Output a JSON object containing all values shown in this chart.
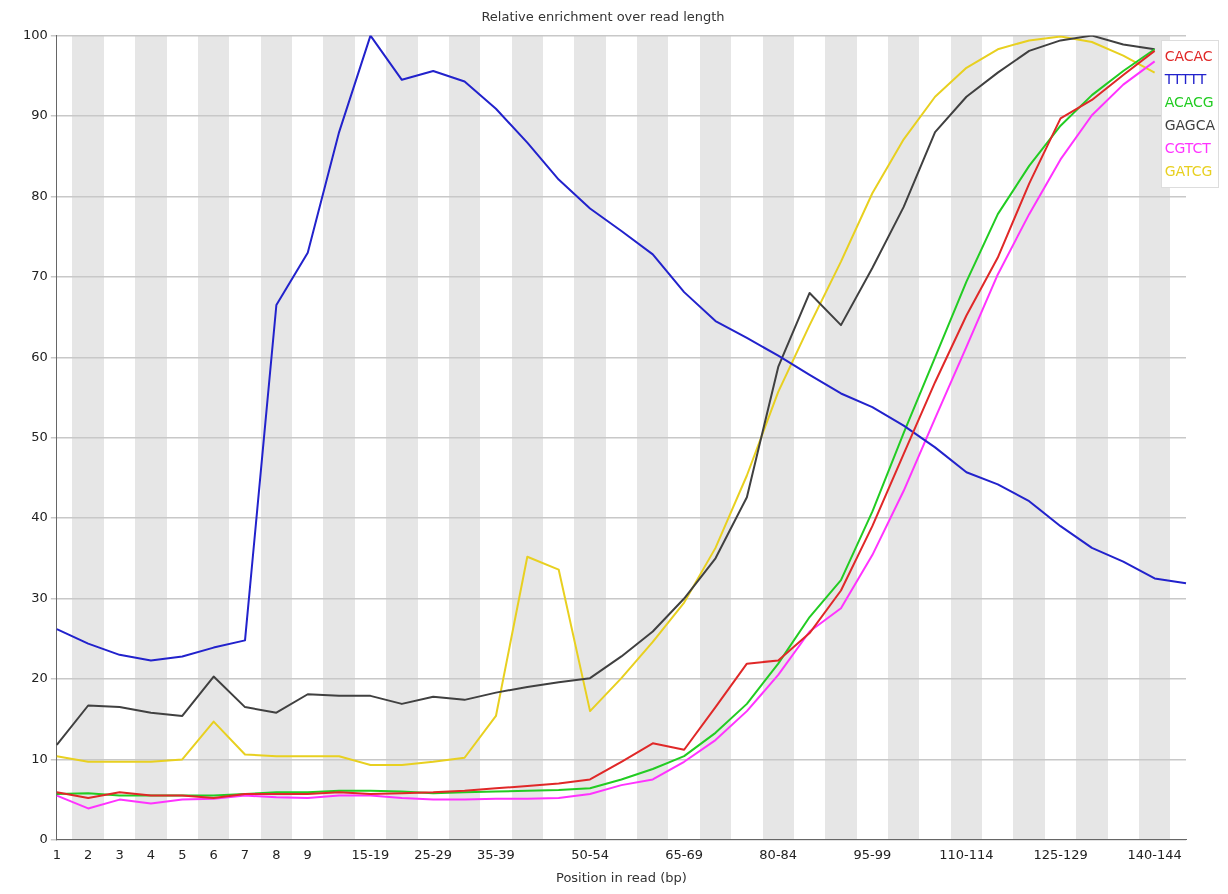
{
  "chart_data": {
    "type": "line",
    "title": "Relative enrichment over read length",
    "xlabel": "Position in read (bp)",
    "categories": [
      "1",
      "2",
      "3",
      "4",
      "5",
      "6",
      "7",
      "8",
      "9",
      null,
      "15-19",
      null,
      "25-29",
      null,
      "35-39",
      null,
      null,
      "50-54",
      null,
      null,
      "65-69",
      null,
      null,
      "80-84",
      null,
      null,
      "95-99",
      null,
      null,
      "110-114",
      null,
      null,
      "125-129",
      null,
      null,
      "140-144",
      null
    ],
    "series": [
      {
        "name": "CACAC",
        "color": "#e02828",
        "values": [
          5.9,
          5.2,
          5.9,
          5.5,
          5.5,
          5.2,
          5.7,
          5.7,
          5.7,
          5.9,
          5.7,
          5.8,
          5.9,
          6.1,
          6.4,
          6.7,
          7.0,
          7.5,
          9.7,
          12.0,
          11.2,
          16.5,
          21.9,
          22.3,
          25.7,
          31.0,
          39.0,
          48.0,
          56.9,
          65.2,
          72.4,
          81.6,
          89.7,
          92.0,
          95.1,
          98.1,
          null
        ]
      },
      {
        "name": "TTTTT",
        "color": "#2222cc",
        "values": [
          26.2,
          24.4,
          23.0,
          22.3,
          22.8,
          23.9,
          24.8,
          66.5,
          73.0,
          88.0,
          100.0,
          94.5,
          95.6,
          94.3,
          90.9,
          86.7,
          82.1,
          78.5,
          75.7,
          72.8,
          68.1,
          64.5,
          62.4,
          60.2,
          57.8,
          55.5,
          53.8,
          51.5,
          48.8,
          45.7,
          44.2,
          42.1,
          39.0,
          36.3,
          34.6,
          32.5,
          31.9
        ]
      },
      {
        "name": "ACACG",
        "color": "#22cc22",
        "values": [
          5.7,
          5.8,
          5.5,
          5.5,
          5.5,
          5.5,
          5.7,
          5.9,
          5.9,
          6.1,
          6.1,
          6.0,
          5.8,
          5.9,
          6.0,
          6.1,
          6.2,
          6.4,
          7.5,
          8.8,
          10.4,
          13.3,
          16.9,
          21.9,
          27.7,
          32.3,
          40.8,
          50.6,
          60.0,
          69.4,
          77.8,
          83.8,
          88.8,
          92.6,
          95.6,
          98.3,
          null
        ]
      },
      {
        "name": "GAGCA",
        "color": "#404040",
        "values": [
          11.8,
          16.7,
          16.5,
          15.8,
          15.4,
          20.3,
          16.5,
          15.8,
          18.1,
          17.9,
          17.9,
          16.9,
          17.8,
          17.4,
          18.3,
          19.0,
          19.6,
          20.1,
          22.8,
          25.9,
          30.0,
          35.0,
          42.6,
          58.8,
          68.0,
          64.0,
          71.1,
          78.7,
          88.0,
          92.4,
          95.4,
          98.1,
          99.4,
          100.0,
          98.9,
          98.3,
          null
        ]
      },
      {
        "name": "CGTCT",
        "color": "#ff33ff",
        "values": [
          5.5,
          3.9,
          5.0,
          4.5,
          5.0,
          5.1,
          5.5,
          5.3,
          5.2,
          5.5,
          5.5,
          5.2,
          5.0,
          5.0,
          5.1,
          5.1,
          5.2,
          5.7,
          6.8,
          7.5,
          9.7,
          12.4,
          16.0,
          20.5,
          25.9,
          28.8,
          35.4,
          43.4,
          52.4,
          61.3,
          70.3,
          77.8,
          84.6,
          90.1,
          93.9,
          96.8,
          null
        ]
      },
      {
        "name": "GATCG",
        "color": "#e8d020",
        "values": [
          10.4,
          9.7,
          9.7,
          9.7,
          10.0,
          14.7,
          10.6,
          10.4,
          10.4,
          10.4,
          9.3,
          9.3,
          9.7,
          10.2,
          15.4,
          35.2,
          33.6,
          16.0,
          20.1,
          24.6,
          29.5,
          36.3,
          45.3,
          55.7,
          64.0,
          71.9,
          80.4,
          87.1,
          92.4,
          96.0,
          98.3,
          99.4,
          99.9,
          99.2,
          97.5,
          95.4,
          null
        ]
      }
    ],
    "ylim": [
      0,
      100
    ],
    "yticks": [
      0,
      10,
      20,
      30,
      40,
      50,
      60,
      70,
      80,
      90,
      100
    ],
    "grid": "y",
    "legend": "top right",
    "marker": "none",
    "line_style": "solid"
  }
}
